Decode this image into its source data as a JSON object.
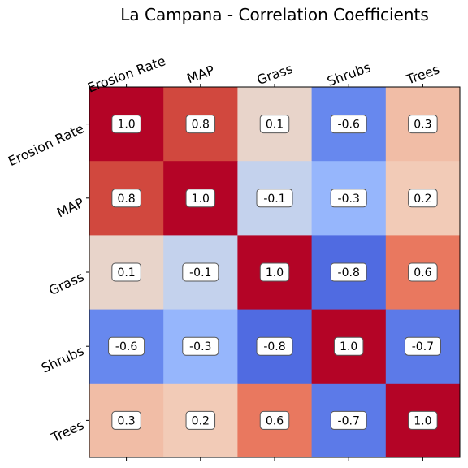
{
  "chart_data": {
    "type": "heatmap",
    "title": "La Campana - Correlation Coefficients",
    "x_categories": [
      "Erosion Rate",
      "MAP",
      "Grass",
      "Shrubs",
      "Trees"
    ],
    "y_categories": [
      "Erosion Rate",
      "MAP",
      "Grass",
      "Shrubs",
      "Trees"
    ],
    "values": [
      [
        1.0,
        0.8,
        0.1,
        -0.6,
        0.3
      ],
      [
        0.8,
        1.0,
        -0.1,
        -0.3,
        0.2
      ],
      [
        0.1,
        -0.1,
        1.0,
        -0.8,
        0.6
      ],
      [
        -0.6,
        -0.3,
        -0.8,
        1.0,
        -0.7
      ],
      [
        0.3,
        0.2,
        0.6,
        -0.7,
        1.0
      ]
    ],
    "value_labels": [
      [
        "1.0",
        "0.8",
        "0.1",
        "-0.6",
        "0.3"
      ],
      [
        "0.8",
        "1.0",
        "-0.1",
        "-0.3",
        "0.2"
      ],
      [
        "0.1",
        "-0.1",
        "1.0",
        "-0.8",
        "0.6"
      ],
      [
        "-0.6",
        "-0.3",
        "-0.8",
        "1.0",
        "-0.7"
      ],
      [
        "0.3",
        "0.2",
        "0.6",
        "-0.7",
        "1.0"
      ]
    ],
    "colormap": "coolwarm",
    "value_range": [
      -1,
      1
    ],
    "x_ticks_position": "top",
    "grid": false,
    "legend": "none"
  }
}
